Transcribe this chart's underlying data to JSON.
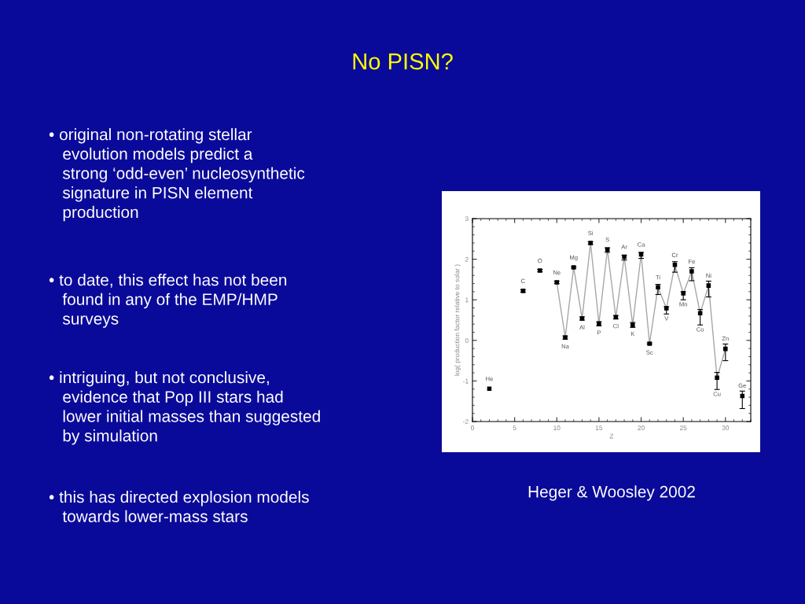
{
  "chart_data": {
    "type": "line",
    "title": "No PISN?",
    "xlabel": "Z",
    "ylabel": "log( production factor relative to solar )",
    "x": [
      2,
      3,
      4,
      5,
      6,
      7,
      8,
      9,
      10,
      11,
      12,
      13,
      14,
      15,
      16,
      17,
      18,
      19,
      20,
      21,
      22,
      23,
      24,
      25,
      26,
      27,
      28,
      29,
      30,
      31,
      32
    ],
    "series": [
      {
        "color": "#000000",
        "values": [
          -1.19,
          null,
          null,
          null,
          1.22,
          null,
          1.72,
          null,
          1.43,
          0.07,
          1.8,
          0.54,
          2.4,
          0.41,
          2.24,
          0.57,
          2.06,
          0.38,
          2.12,
          -0.08,
          1.31,
          0.79,
          1.86,
          1.16,
          1.7,
          0.67,
          1.35,
          -0.92,
          -0.21,
          null,
          -1.37
        ],
        "errors": [
          null,
          null,
          null,
          null,
          [
            1.19,
            1.25
          ],
          null,
          [
            1.69,
            1.75
          ],
          null,
          [
            1.4,
            1.46
          ],
          [
            0.03,
            0.11
          ],
          [
            1.78,
            1.82
          ],
          [
            0.5,
            0.58
          ],
          [
            2.37,
            2.43
          ],
          [
            0.36,
            0.46
          ],
          [
            2.17,
            2.28
          ],
          [
            0.53,
            0.61
          ],
          [
            1.98,
            2.1
          ],
          [
            0.32,
            0.44
          ],
          [
            2.02,
            2.17
          ],
          [
            -0.1,
            -0.06
          ],
          [
            1.13,
            1.38
          ],
          [
            0.65,
            0.83
          ],
          [
            1.68,
            1.94
          ],
          [
            1.0,
            1.2
          ],
          [
            1.47,
            1.79
          ],
          [
            0.38,
            0.76
          ],
          [
            1.07,
            1.46
          ],
          [
            -1.21,
            -0.79
          ],
          [
            -0.5,
            -0.09
          ],
          null,
          [
            -1.68,
            -1.25
          ]
        ]
      }
    ],
    "xlim": [
      0,
      33
    ],
    "ylim": [
      -2,
      3
    ],
    "xticks": [
      0,
      5,
      10,
      15,
      20,
      25,
      30
    ],
    "yticks": [
      -2,
      -1,
      0,
      1,
      2,
      3
    ],
    "marker": "square",
    "line_style": "solid",
    "grid": false,
    "legend": false,
    "annotations": [
      {
        "text": "He",
        "x": 2,
        "y": -1.19
      },
      {
        "text": "C",
        "x": 6,
        "y": 1.22
      },
      {
        "text": "O",
        "x": 8,
        "y": 1.72
      },
      {
        "text": "Ne",
        "x": 10,
        "y": 1.43
      },
      {
        "text": "Na",
        "x": 11,
        "y": 0.07
      },
      {
        "text": "Mg",
        "x": 12,
        "y": 1.8
      },
      {
        "text": "Al",
        "x": 13,
        "y": 0.54
      },
      {
        "text": "Si",
        "x": 14,
        "y": 2.4
      },
      {
        "text": "P",
        "x": 15,
        "y": 0.41
      },
      {
        "text": "S",
        "x": 16,
        "y": 2.24
      },
      {
        "text": "Cl",
        "x": 17,
        "y": 0.57
      },
      {
        "text": "Ar",
        "x": 18,
        "y": 2.06
      },
      {
        "text": "K",
        "x": 19,
        "y": 0.38
      },
      {
        "text": "Ca",
        "x": 20,
        "y": 2.12
      },
      {
        "text": "Sc",
        "x": 21,
        "y": -0.08
      },
      {
        "text": "Ti",
        "x": 22,
        "y": 1.31
      },
      {
        "text": "V",
        "x": 23,
        "y": 0.79
      },
      {
        "text": "Cr",
        "x": 24,
        "y": 1.86
      },
      {
        "text": "Mn",
        "x": 25,
        "y": 1.16
      },
      {
        "text": "Fe",
        "x": 26,
        "y": 1.7
      },
      {
        "text": "Co",
        "x": 27,
        "y": 0.67
      },
      {
        "text": "Ni",
        "x": 28,
        "y": 1.35
      },
      {
        "text": "Cu",
        "x": 29,
        "y": -0.92
      },
      {
        "text": "Zn",
        "x": 30,
        "y": -0.21
      },
      {
        "text": "Ge",
        "x": 32,
        "y": -1.37
      },
      "• original non-rotating stellar\n   evolution models predict a\n   strong ‘odd-even’ nucleosynthetic\n   signature in PISN element\n   production",
      "• to date, this effect has not been\n   found in any of the EMP/HMP\n   surveys",
      "• intriguing, but not conclusive,\n   evidence that Pop III stars had\n   lower initial masses than suggested\n   by simulation",
      "• this has directed explosion models\n   towards lower-mass stars",
      "Heger & Woosley 2002"
    ]
  }
}
